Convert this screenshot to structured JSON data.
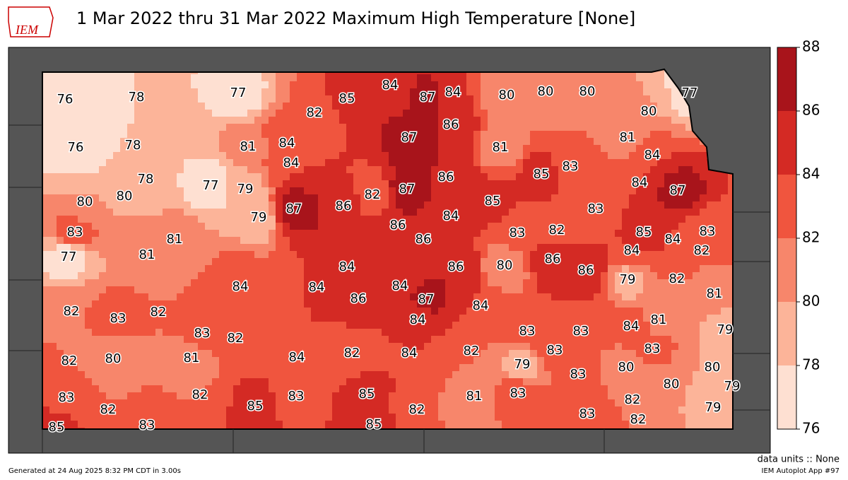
{
  "header": {
    "logo": "IEM",
    "title": "1 Mar 2022 thru 31 Mar 2022 Maximum High Temperature [None]"
  },
  "colorbar": {
    "levels": [
      76,
      78,
      80,
      82,
      84,
      86,
      88
    ],
    "colors": [
      "#fee0d2",
      "#fcb499",
      "#f7866b",
      "#f0553e",
      "#d42a24",
      "#a8141b"
    ]
  },
  "stations": [
    76,
    78,
    77,
    85,
    84,
    87,
    84,
    80,
    80,
    80,
    77,
    82,
    86,
    80,
    76,
    78,
    81,
    84,
    87,
    81,
    81,
    84,
    84,
    85,
    83,
    78,
    80,
    77,
    79,
    82,
    87,
    86,
    80,
    85,
    84,
    87,
    79,
    87,
    86,
    84,
    83,
    83,
    81,
    86,
    86,
    83,
    82,
    85,
    84,
    83,
    77,
    81,
    84,
    86,
    80,
    86,
    86,
    84,
    82,
    79,
    82,
    84,
    84,
    84,
    86,
    87,
    82,
    83,
    82,
    84,
    81,
    84,
    81,
    84,
    79,
    83,
    82,
    83,
    83,
    84,
    82,
    84,
    82,
    83,
    83,
    81,
    80,
    82,
    79,
    83,
    80,
    80,
    80,
    79,
    83,
    82,
    82,
    85,
    83,
    85,
    81,
    83,
    82,
    82,
    79,
    83,
    82,
    85,
    83,
    85
  ],
  "footer": {
    "units": "data units :: None",
    "app": "IEM Autoplot App #97",
    "generated": "Generated at 24 Aug 2025 8:32 PM CDT in 3.00s"
  }
}
